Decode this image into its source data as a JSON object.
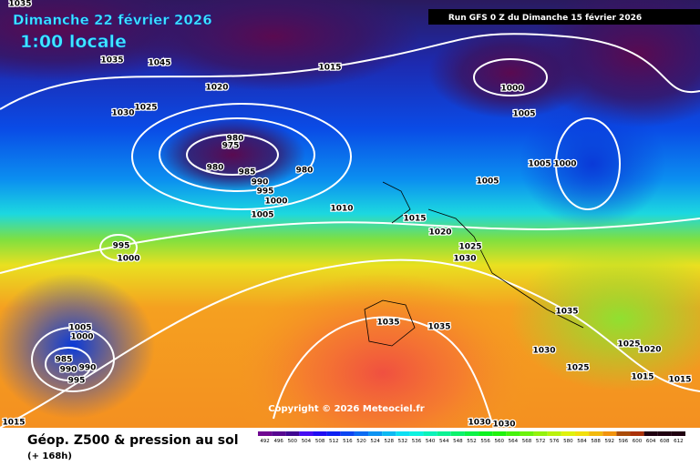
{
  "header": {
    "date": "Dimanche 22 février 2026",
    "time": "1:00 locale",
    "run": "Run GFS 0 Z du Dimanche 15 février 2026"
  },
  "copyright": "Copyright © 2026 Meteociel.fr",
  "footer": {
    "title": "Géop. Z500 & pression au sol",
    "lead": "(+ 168h)"
  },
  "isobar_labels": [
    "1035",
    "1045",
    "1020",
    "1015",
    "1030",
    "1025",
    "980",
    "975",
    "980",
    "985",
    "980",
    "990",
    "995",
    "1000",
    "1005",
    "1010",
    "1015",
    "1020",
    "1025",
    "1030",
    "995",
    "1000",
    "1000",
    "1005",
    "1005",
    "1000",
    "1005",
    "1005",
    "1000",
    "985",
    "990",
    "990",
    "995",
    "1035",
    "1035",
    "1030",
    "1035",
    "1025",
    "1020",
    "1025",
    "1015",
    "1015",
    "1015",
    "1030",
    "1030",
    "1035"
  ],
  "scale": {
    "values": [
      492,
      496,
      500,
      504,
      508,
      512,
      516,
      520,
      524,
      528,
      532,
      536,
      540,
      544,
      548,
      552,
      556,
      560,
      564,
      568,
      572,
      576,
      580,
      584,
      588,
      592,
      596,
      600,
      604,
      608,
      612
    ]
  }
}
